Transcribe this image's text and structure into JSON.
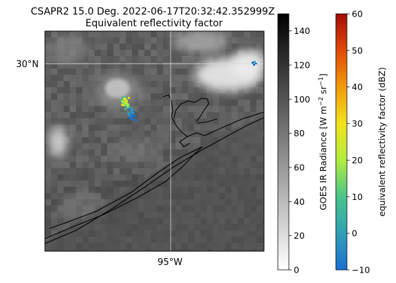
{
  "chart_data": {
    "type": "heatmap",
    "title": "CSAPR2 15.0 Deg. 2022-06-17T20:32:42.352999Z",
    "subtitle": "Equivalent reflectivity factor",
    "map": {
      "lat_label": "30°N",
      "lon_label": "95°W",
      "gridlines": true,
      "coastline": true
    },
    "colorbars": [
      {
        "label": "GOES IR Radiance [W m^-2 sr^-1]",
        "label_main": "GOES IR Radiance [W m",
        "label_exp1": "−2",
        "label_mid": " sr",
        "label_exp2": "−1",
        "label_end": "]",
        "range": [
          0,
          150
        ],
        "ticks": [
          0,
          20,
          40,
          60,
          80,
          100,
          120,
          140
        ],
        "tick_labels": [
          "0",
          "20",
          "40",
          "60",
          "80",
          "100",
          "120",
          "140"
        ],
        "cmap": "gray_r",
        "colors": [
          "#ffffff",
          "#000000"
        ]
      },
      {
        "label": "equivalent reflectivity factor (dBZ)",
        "range": [
          -10,
          60
        ],
        "ticks": [
          -10,
          0,
          10,
          20,
          30,
          40,
          50,
          60
        ],
        "tick_labels": [
          "−10",
          "0",
          "10",
          "20",
          "30",
          "40",
          "50",
          "60"
        ],
        "cmap": "HomeyerRainbow",
        "colors": [
          "#1a6fd1",
          "#2f9fb6",
          "#49c58a",
          "#b2ec3f",
          "#f2e21c",
          "#f29a0c",
          "#e04a08",
          "#a10d06"
        ]
      }
    ],
    "radar_echo": {
      "name": "radar-echo",
      "dbz_max": 35
    }
  }
}
